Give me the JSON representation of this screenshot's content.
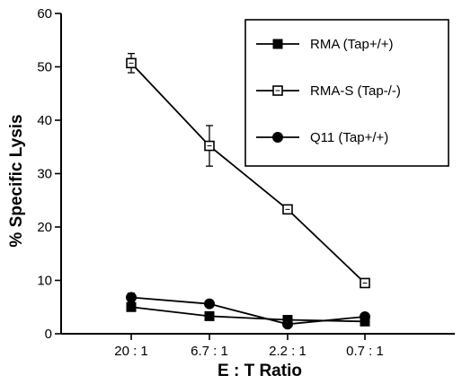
{
  "chart_data": {
    "type": "line",
    "title": "",
    "xlabel": "E : T Ratio",
    "ylabel": "% Specific Lysis",
    "categories": [
      "20 : 1",
      "6.7 : 1",
      "2.2 : 1",
      "0.7 : 1"
    ],
    "ylim": [
      0,
      60
    ],
    "yticks": [
      0,
      10,
      20,
      30,
      40,
      50,
      60
    ],
    "grid": false,
    "legend_position": "top-right",
    "series": [
      {
        "name": "RMA (Tap+/+)",
        "marker": "filled-square",
        "values": [
          5.0,
          3.3,
          2.6,
          2.3
        ],
        "errors": [
          0.6,
          0.5,
          0.3,
          0.3
        ]
      },
      {
        "name": "RMA-S (Tap-/-)",
        "marker": "open-square",
        "values": [
          50.7,
          35.2,
          23.3,
          9.5
        ],
        "errors": [
          1.8,
          3.8,
          0.4,
          0.3
        ]
      },
      {
        "name": "Q11 (Tap+/+)",
        "marker": "filled-circle",
        "values": [
          6.8,
          5.6,
          1.8,
          3.2
        ],
        "errors": [
          0.8,
          0.4,
          0.3,
          0.3
        ]
      }
    ]
  }
}
